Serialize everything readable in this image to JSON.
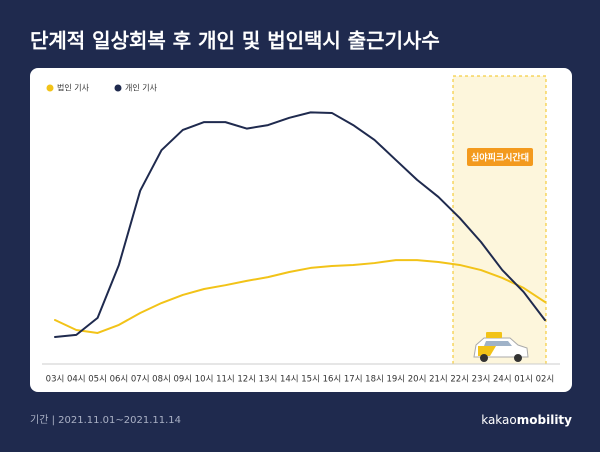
{
  "chart_data": {
    "type": "line",
    "title": "단계적 일상회복 후 개인 및 법인택시 출근기사수",
    "categories": [
      "03시",
      "04시",
      "05시",
      "06시",
      "07시",
      "08시",
      "09시",
      "10시",
      "11시",
      "12시",
      "13시",
      "14시",
      "15시",
      "16시",
      "17시",
      "18시",
      "19시",
      "20시",
      "21시",
      "22시",
      "23시",
      "24시",
      "01시",
      "02시"
    ],
    "series": [
      {
        "name": "법인 기사",
        "color": "#f2c318",
        "values": [
          11.1,
          7.4,
          6.3,
          9.3,
          13.7,
          17.4,
          20.4,
          22.6,
          24,
          25.6,
          27,
          28.9,
          30.4,
          31.1,
          31.5,
          32.2,
          33.3,
          33.3,
          32.6,
          31.5,
          29.6,
          26.7,
          23,
          17.8
        ]
      },
      {
        "name": "개인 기사",
        "color": "#1f2a4e",
        "values": [
          4.8,
          5.6,
          11.9,
          31.5,
          59,
          74,
          81.5,
          84.4,
          84.4,
          82,
          83.3,
          86,
          88,
          87.8,
          83.3,
          77.8,
          70.4,
          63,
          56.7,
          48.9,
          40,
          29.6,
          21.5,
          11.1
        ]
      }
    ],
    "ylim": [
      0,
      100
    ],
    "highlight_label": "심야피크시간대",
    "period": "기간 | 2021.11.01~2021.11.14",
    "brand_light": "kakao",
    "brand_bold": "mobility"
  }
}
